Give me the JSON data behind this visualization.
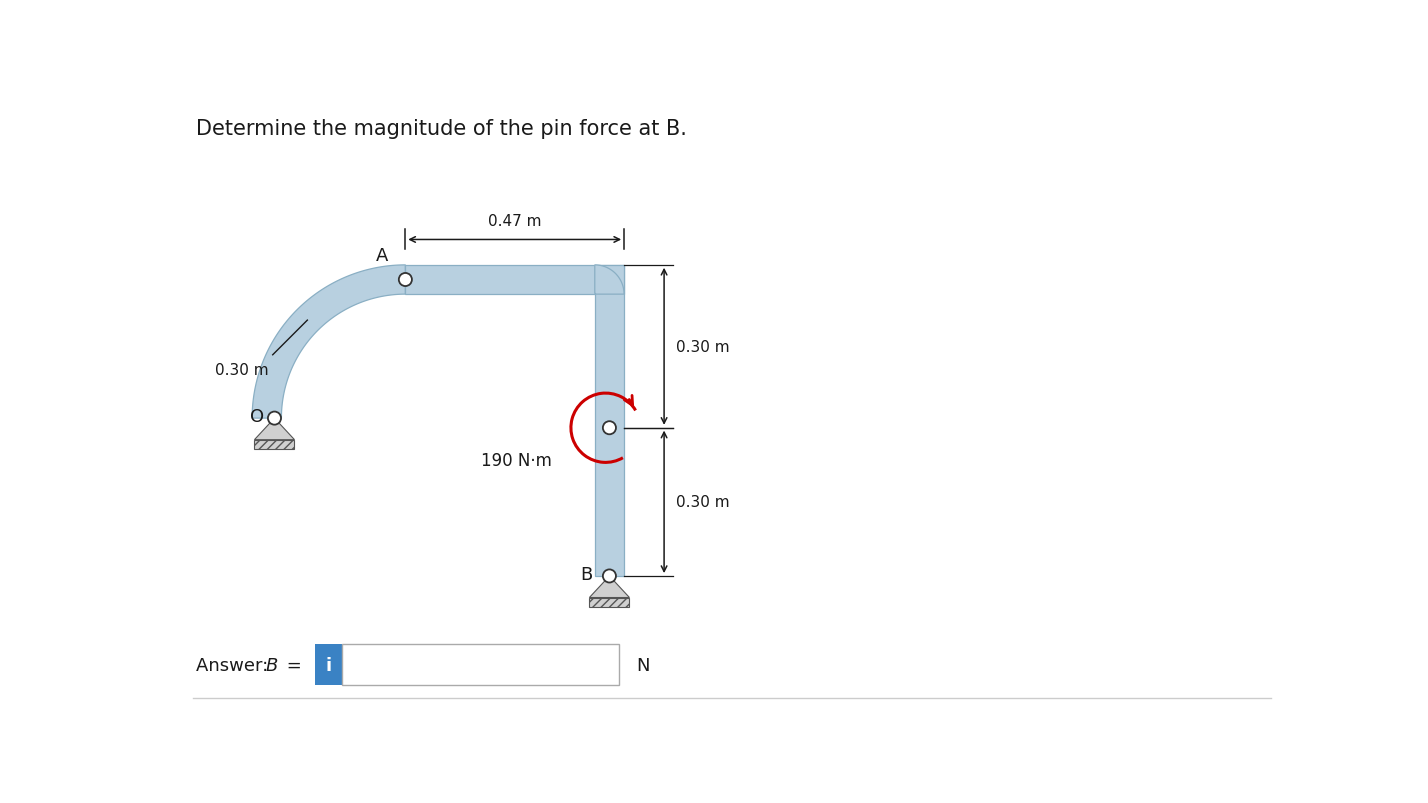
{
  "title": "Determine the magnitude of the pin force at   B.",
  "title_text": "Determine the magnitude of the pin force at B.",
  "title_fontsize": 15,
  "title_color": "#1a1a1a",
  "bg_color": "#ffffff",
  "struct_color": "#b8d0e0",
  "struct_edge_color": "#8aafc4",
  "ground_fill": "#d0d0d0",
  "ground_hatch_color": "#888888",
  "moment_color": "#cc0000",
  "dim_color": "#1a1a1a",
  "pin_fill": "#ffffff",
  "pin_edge": "#333333",
  "answer_box_color": "#3a82c4",
  "answer_unit": "N",
  "dim_047": "0.47 m",
  "dim_030_arc": "0.30 m",
  "dim_030_top": "0.30 m",
  "dim_030_bot": "0.30 m",
  "moment_label": "190 N·m",
  "label_A": "A",
  "label_O": "O",
  "label_B": "B"
}
